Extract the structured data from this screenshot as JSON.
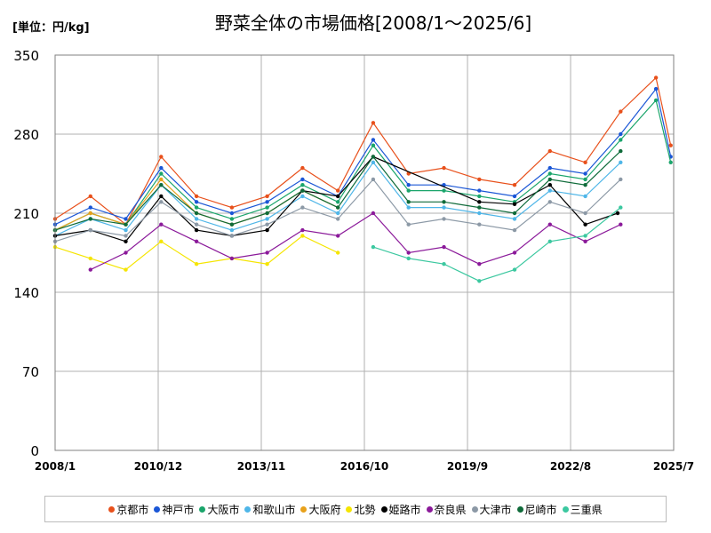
{
  "header": {
    "unit": "[単位：円/kg]",
    "title": "野菜全体の市場価格[2008/1～2025/6]"
  },
  "chart_data": {
    "type": "line",
    "title": "野菜全体の市場価格[2008/1～2025/6]",
    "unit": "[単位：円/kg]",
    "ylim": [
      0,
      350
    ],
    "y_ticks": [
      "0",
      "70",
      "140",
      "210",
      "280",
      "350"
    ],
    "x_ticks": [
      "2008/1",
      "2010/12",
      "2013/11",
      "2016/10",
      "2019/9",
      "2022/8",
      "2025/7"
    ],
    "grid": true,
    "legend_position": "bottom",
    "series": [
      {
        "name": "京都市",
        "color": "#e8501b",
        "x": [
          "2008-01",
          "2009-01",
          "2010-01",
          "2011-01",
          "2012-01",
          "2013-01",
          "2014-01",
          "2015-01",
          "2016-01",
          "2017-01",
          "2018-01",
          "2019-01",
          "2020-01",
          "2021-01",
          "2022-01",
          "2023-01",
          "2024-01",
          "2025-01",
          "2025-06"
        ],
        "values": [
          205,
          225,
          200,
          260,
          225,
          215,
          225,
          250,
          230,
          290,
          245,
          250,
          240,
          235,
          265,
          255,
          300,
          330,
          270
        ]
      },
      {
        "name": "神戸市",
        "color": "#1a56d6",
        "x": [
          "2008-01",
          "2009-01",
          "2010-01",
          "2011-01",
          "2012-01",
          "2013-01",
          "2014-01",
          "2015-01",
          "2016-01",
          "2017-01",
          "2018-01",
          "2019-01",
          "2020-01",
          "2021-01",
          "2022-01",
          "2023-01",
          "2024-01",
          "2025-01",
          "2025-06"
        ],
        "values": [
          200,
          215,
          205,
          250,
          220,
          210,
          220,
          240,
          225,
          275,
          235,
          235,
          230,
          225,
          250,
          245,
          280,
          320,
          260
        ]
      },
      {
        "name": "大阪市",
        "color": "#1aa56b",
        "x": [
          "2008-01",
          "2009-01",
          "2010-01",
          "2011-01",
          "2012-01",
          "2013-01",
          "2014-01",
          "2015-01",
          "2016-01",
          "2017-01",
          "2018-01",
          "2019-01",
          "2020-01",
          "2021-01",
          "2022-01",
          "2023-01",
          "2024-01",
          "2025-01",
          "2025-06"
        ],
        "values": [
          195,
          210,
          200,
          245,
          215,
          205,
          215,
          235,
          220,
          270,
          230,
          230,
          225,
          220,
          245,
          240,
          275,
          310,
          255
        ]
      },
      {
        "name": "和歌山市",
        "color": "#4fb6e8",
        "x": [
          "2008-01",
          "2009-01",
          "2010-01",
          "2011-01",
          "2012-01",
          "2013-01",
          "2014-01",
          "2015-01",
          "2016-01",
          "2017-01",
          "2018-01",
          "2019-01",
          "2020-01",
          "2021-01",
          "2022-01",
          "2023-01",
          "2024-01"
        ],
        "values": [
          190,
          205,
          195,
          235,
          205,
          195,
          205,
          225,
          210,
          255,
          215,
          215,
          210,
          205,
          230,
          225,
          255
        ]
      },
      {
        "name": "大阪府",
        "color": "#e8a11b",
        "x": [
          "2008-01",
          "2009-01",
          "2010-01",
          "2011-01",
          "2012-01",
          "2013-01",
          "2014-01",
          "2015-01",
          "2016-01"
        ],
        "values": [
          195,
          210,
          200,
          240,
          210,
          200,
          210,
          230,
          215
        ]
      },
      {
        "name": "北勢",
        "color": "#f5e500",
        "x": [
          "2008-01",
          "2009-01",
          "2010-01",
          "2011-01",
          "2012-01",
          "2013-01",
          "2014-01",
          "2015-01",
          "2016-01"
        ],
        "values": [
          180,
          170,
          160,
          185,
          165,
          170,
          165,
          190,
          175
        ]
      },
      {
        "name": "姫路市",
        "color": "#000000",
        "x": [
          "2008-01",
          "2009-01",
          "2010-01",
          "2011-01",
          "2012-01",
          "2013-01",
          "2014-01",
          "2015-01",
          "2016-01",
          "2017-01",
          "2020-01",
          "2021-01",
          "2022-01",
          "2023-01",
          "2023-12"
        ],
        "values": [
          190,
          195,
          185,
          225,
          195,
          190,
          195,
          230,
          225,
          260,
          220,
          218,
          235,
          200,
          210
        ]
      },
      {
        "name": "奈良県",
        "color": "#8b1a9a",
        "x": [
          "2009-01",
          "2010-01",
          "2011-01",
          "2012-01",
          "2013-01",
          "2014-01",
          "2015-01",
          "2016-01",
          "2017-01",
          "2018-01",
          "2019-01",
          "2020-01",
          "2021-01",
          "2022-01",
          "2023-01",
          "2024-01"
        ],
        "values": [
          160,
          175,
          200,
          185,
          170,
          175,
          195,
          190,
          210,
          175,
          180,
          165,
          175,
          200,
          185,
          200
        ]
      },
      {
        "name": "大津市",
        "color": "#8c99a6",
        "x": [
          "2008-01",
          "2009-01",
          "2010-01",
          "2011-01",
          "2012-01",
          "2013-01",
          "2014-01",
          "2015-01",
          "2016-01",
          "2017-01",
          "2018-01",
          "2019-01",
          "2020-01",
          "2021-01",
          "2022-01",
          "2023-01",
          "2024-01"
        ],
        "values": [
          185,
          195,
          190,
          220,
          200,
          190,
          200,
          215,
          205,
          240,
          200,
          205,
          200,
          195,
          220,
          210,
          240
        ]
      },
      {
        "name": "尼崎市",
        "color": "#0f6b3a",
        "x": [
          "2008-01",
          "2009-01",
          "2010-01",
          "2011-01",
          "2012-01",
          "2013-01",
          "2014-01",
          "2015-01",
          "2016-01",
          "2017-01",
          "2018-01",
          "2019-01",
          "2020-01",
          "2021-01",
          "2022-01",
          "2023-01",
          "2024-01"
        ],
        "values": [
          195,
          205,
          200,
          235,
          210,
          200,
          210,
          230,
          215,
          260,
          220,
          220,
          215,
          210,
          240,
          235,
          265
        ]
      },
      {
        "name": "三重県",
        "color": "#3cc8a0",
        "x": [
          "2017-01",
          "2018-01",
          "2019-01",
          "2020-01",
          "2021-01",
          "2022-01",
          "2023-01",
          "2024-01"
        ],
        "values": [
          180,
          170,
          165,
          150,
          160,
          185,
          190,
          215
        ]
      }
    ]
  }
}
